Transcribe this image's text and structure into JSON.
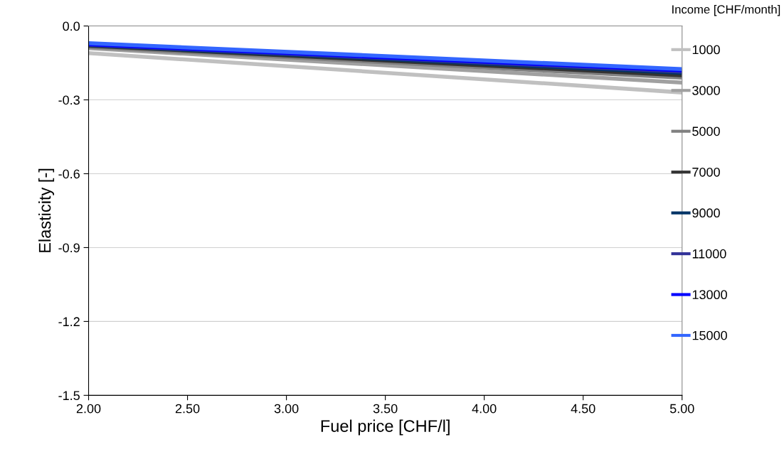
{
  "chart_data": {
    "type": "line",
    "xlabel": "Fuel price [CHF/l]",
    "ylabel": "Elasticity [-]",
    "legend_title": "Income [CHF/month]",
    "x": [
      2,
      5
    ],
    "series": [
      {
        "name": "1000",
        "color": "#c0c0c0",
        "values": [
          -0.11,
          -0.27
        ]
      },
      {
        "name": "3000",
        "color": "#a0a0a0",
        "values": [
          -0.09,
          -0.23
        ]
      },
      {
        "name": "5000",
        "color": "#808080",
        "values": [
          -0.085,
          -0.21
        ]
      },
      {
        "name": "7000",
        "color": "#333333",
        "values": [
          -0.08,
          -0.2
        ]
      },
      {
        "name": "9000",
        "color": "#003366",
        "values": [
          -0.078,
          -0.19
        ]
      },
      {
        "name": "11000",
        "color": "#333399",
        "values": [
          -0.076,
          -0.185
        ]
      },
      {
        "name": "13000",
        "color": "#0000ff",
        "values": [
          -0.074,
          -0.18
        ]
      },
      {
        "name": "15000",
        "color": "#3366ff",
        "values": [
          -0.07,
          -0.175
        ]
      }
    ],
    "xlim": [
      2,
      5
    ],
    "xticks": [
      {
        "value": 2,
        "label": "2.00"
      },
      {
        "value": 2.5,
        "label": "2.50"
      },
      {
        "value": 3,
        "label": "3.00"
      },
      {
        "value": 3.5,
        "label": "3.50"
      },
      {
        "value": 4,
        "label": "4.00"
      },
      {
        "value": 4.5,
        "label": "4.50"
      },
      {
        "value": 5,
        "label": "5.00"
      }
    ],
    "ylim": [
      -1.5,
      0
    ],
    "yticks": [
      {
        "value": -1.5,
        "label": "-1.5"
      },
      {
        "value": -1.2,
        "label": "-1.2"
      },
      {
        "value": -0.9,
        "label": "-0.9"
      },
      {
        "value": -0.6,
        "label": "-0.6"
      },
      {
        "value": -0.3,
        "label": "-0.3"
      },
      {
        "value": 0,
        "label": "0.0"
      }
    ],
    "grid": "y",
    "legend": "right",
    "marker": "none",
    "line_style": "solid"
  }
}
